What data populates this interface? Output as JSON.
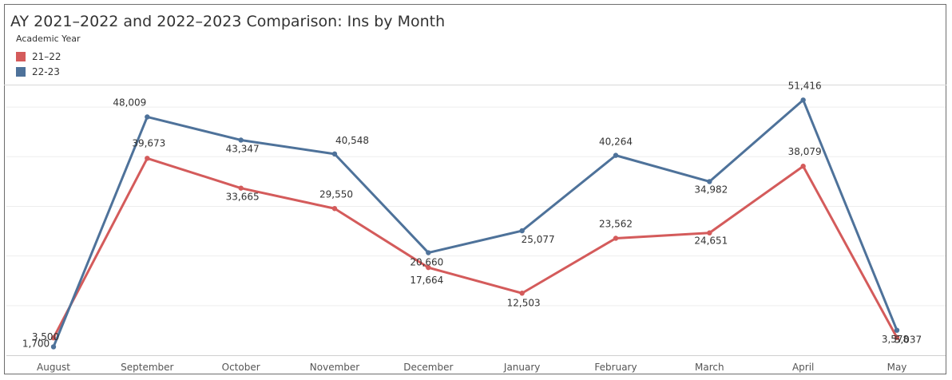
{
  "chart_data": {
    "type": "line",
    "title": "AY 2021–2022 and 2022–2023 Comparison: Ins by Month",
    "legend": {
      "title": "Academic Year",
      "placement": "top-left"
    },
    "categories": [
      "August",
      "September",
      "October",
      "November",
      "December",
      "January",
      "February",
      "March",
      "April",
      "May"
    ],
    "series": [
      {
        "name": "21–22",
        "color": "#d45b5b",
        "values": [
          3500,
          39673,
          33665,
          29550,
          17664,
          12503,
          23562,
          24651,
          38079,
          3578
        ],
        "labels": [
          "3,500",
          "39,673",
          "33,665",
          "29,550",
          "17,664",
          "12,503",
          "23,562",
          "24,651",
          "38,079",
          "3,578"
        ]
      },
      {
        "name": "22-23",
        "color": "#4e729a",
        "values": [
          1700,
          48009,
          43347,
          40548,
          20660,
          25077,
          40264,
          34982,
          51416,
          5037
        ],
        "labels": [
          "1,700",
          "48,009",
          "43,347",
          "40,548",
          "20,660",
          "25,077",
          "40,264",
          "34,982",
          "51,416",
          "5,037"
        ]
      }
    ],
    "ylim": [
      0,
      55000
    ],
    "grid": true,
    "xlabel": "",
    "ylabel": ""
  }
}
